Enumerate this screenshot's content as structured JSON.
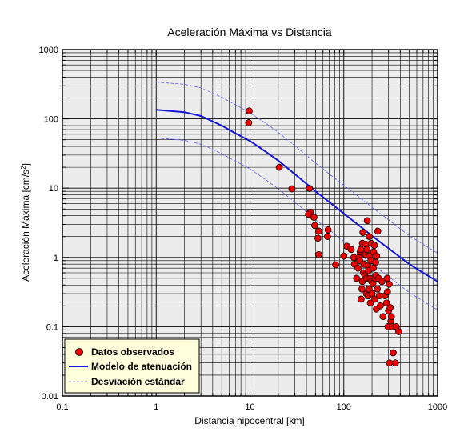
{
  "chart_data": {
    "type": "scatter",
    "title": "Aceleración Máxima vs Distancia",
    "xlabel": "Distancia hipocentral [km]",
    "ylabel_main": "Aceleración Máxima [cm/s",
    "ylabel_sup": "2",
    "ylabel_end": "]",
    "xscale": "log",
    "yscale": "log",
    "xlim": [
      0.1,
      1000
    ],
    "ylim": [
      0.01,
      1000
    ],
    "grid": true,
    "legend_position": "bottom-left",
    "x_ticks": [
      {
        "value": 0.1,
        "label": "0.1"
      },
      {
        "value": 1,
        "label": "1"
      },
      {
        "value": 10,
        "label": "10"
      },
      {
        "value": 100,
        "label": "100"
      },
      {
        "value": 1000,
        "label": "1000"
      }
    ],
    "y_ticks": [
      {
        "value": 0.01,
        "label": "0.01"
      },
      {
        "value": 0.1,
        "label": "0.1"
      },
      {
        "value": 1,
        "label": "1"
      },
      {
        "value": 10,
        "label": "10"
      },
      {
        "value": 100,
        "label": "100"
      },
      {
        "value": 1000,
        "label": "1000"
      }
    ],
    "colors": {
      "points": "#e60000",
      "model": "#1414d9",
      "std": "#5a5aff",
      "plot_bg": "#ececec",
      "legend_bg": "#ffffdc"
    },
    "series": [
      {
        "name": "Datos observados",
        "kind": "points",
        "points": [
          [
            9.8,
            130
          ],
          [
            9.7,
            88
          ],
          [
            20.5,
            20
          ],
          [
            28,
            9.8
          ],
          [
            43,
            9.9
          ],
          [
            44,
            4.5
          ],
          [
            42,
            4.2
          ],
          [
            48,
            3.8
          ],
          [
            49,
            2.9
          ],
          [
            54,
            2.4
          ],
          [
            53,
            1.9
          ],
          [
            54,
            1.1
          ],
          [
            68,
            2.5
          ],
          [
            67,
            2.0
          ],
          [
            82,
            0.78
          ],
          [
            100,
            1.05
          ],
          [
            108,
            1.45
          ],
          [
            120,
            1.3
          ],
          [
            128,
            1.0
          ],
          [
            130,
            0.8
          ],
          [
            137,
            0.5
          ],
          [
            142,
            0.7
          ],
          [
            145,
            1.0
          ],
          [
            148,
            0.9
          ],
          [
            150,
            1.2
          ],
          [
            152,
            1.3
          ],
          [
            153,
            0.25
          ],
          [
            156,
            0.35
          ],
          [
            158,
            0.45
          ],
          [
            158,
            1.6
          ],
          [
            160,
            2.3
          ],
          [
            162,
            0.6
          ],
          [
            164,
            0.8
          ],
          [
            168,
            0.55
          ],
          [
            170,
            1.1
          ],
          [
            172,
            1.55
          ],
          [
            174,
            0.3
          ],
          [
            176,
            0.5
          ],
          [
            177,
            1.3
          ],
          [
            178,
            3.4
          ],
          [
            180,
            0.75
          ],
          [
            182,
            0.28
          ],
          [
            184,
            0.65
          ],
          [
            186,
            0.35
          ],
          [
            187,
            2.0
          ],
          [
            188,
            1.05
          ],
          [
            190,
            0.5
          ],
          [
            192,
            0.22
          ],
          [
            194,
            0.9
          ],
          [
            196,
            1.6
          ],
          [
            198,
            0.45
          ],
          [
            200,
            0.3
          ],
          [
            204,
            0.42
          ],
          [
            206,
            0.7
          ],
          [
            208,
            1.2
          ],
          [
            212,
            1.5
          ],
          [
            214,
            0.25
          ],
          [
            216,
            0.5
          ],
          [
            218,
            0.85
          ],
          [
            220,
            0.55
          ],
          [
            222,
            0.18
          ],
          [
            224,
            1.05
          ],
          [
            228,
            0.35
          ],
          [
            230,
            2.4
          ],
          [
            235,
            0.5
          ],
          [
            240,
            0.28
          ],
          [
            245,
            0.2
          ],
          [
            255,
            0.45
          ],
          [
            262,
            0.14
          ],
          [
            275,
            0.28
          ],
          [
            285,
            0.22
          ],
          [
            290,
            0.5
          ],
          [
            292,
            0.32
          ],
          [
            296,
            0.1
          ],
          [
            300,
            0.17
          ],
          [
            305,
            0.41
          ],
          [
            308,
            0.03
          ],
          [
            312,
            0.19
          ],
          [
            318,
            0.12
          ],
          [
            322,
            0.14
          ],
          [
            330,
            0.1
          ],
          [
            336,
            0.042
          ],
          [
            355,
            0.03
          ],
          [
            362,
            0.1
          ],
          [
            385,
            0.085
          ]
        ]
      },
      {
        "name": "Modelo de atenuación",
        "kind": "line",
        "points": [
          [
            1,
            135
          ],
          [
            2,
            125
          ],
          [
            3,
            110
          ],
          [
            5,
            80
          ],
          [
            7,
            62
          ],
          [
            10,
            48
          ],
          [
            15,
            33
          ],
          [
            20,
            25
          ],
          [
            30,
            16
          ],
          [
            50,
            9
          ],
          [
            70,
            6.3
          ],
          [
            100,
            4.3
          ],
          [
            150,
            2.8
          ],
          [
            200,
            2.05
          ],
          [
            300,
            1.35
          ],
          [
            500,
            0.8
          ],
          [
            700,
            0.6
          ],
          [
            1000,
            0.45
          ]
        ]
      },
      {
        "name": "Desviación estándar",
        "kind": "dashed",
        "bands": [
          [
            [
              1,
              340
            ],
            [
              2,
              315
            ],
            [
              3,
              280
            ],
            [
              5,
              205
            ],
            [
              7,
              160
            ],
            [
              10,
              122
            ],
            [
              15,
              85
            ],
            [
              20,
              64
            ],
            [
              30,
              41
            ],
            [
              50,
              23
            ],
            [
              70,
              16
            ],
            [
              100,
              11
            ],
            [
              150,
              7.2
            ],
            [
              200,
              5.3
            ],
            [
              300,
              3.5
            ],
            [
              500,
              2.05
            ],
            [
              700,
              1.55
            ],
            [
              1000,
              1.15
            ]
          ],
          [
            [
              1,
              53
            ],
            [
              2,
              49
            ],
            [
              3,
              43
            ],
            [
              5,
              31.5
            ],
            [
              7,
              24.5
            ],
            [
              10,
              19
            ],
            [
              15,
              13
            ],
            [
              20,
              9.8
            ],
            [
              30,
              6.3
            ],
            [
              50,
              3.5
            ],
            [
              70,
              2.5
            ],
            [
              100,
              1.7
            ],
            [
              150,
              1.1
            ],
            [
              200,
              0.8
            ],
            [
              300,
              0.53
            ],
            [
              500,
              0.31
            ],
            [
              700,
              0.235
            ],
            [
              1000,
              0.175
            ]
          ]
        ]
      }
    ]
  }
}
